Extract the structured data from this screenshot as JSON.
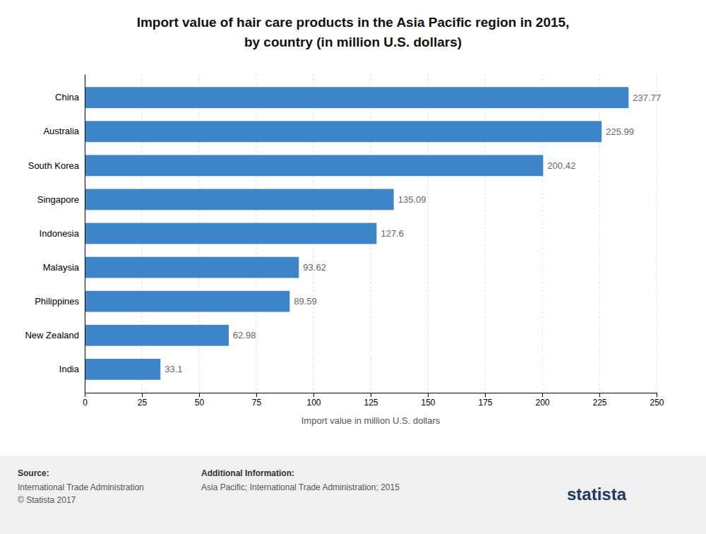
{
  "chart_data": {
    "type": "bar",
    "orientation": "horizontal",
    "title": "Import value of hair care products in the Asia Pacific region in 2015,",
    "subtitle": "by country (in million U.S. dollars)",
    "categories": [
      "India",
      "New Zealand",
      "Philippines",
      "Malaysia",
      "Indonesia",
      "Singapore",
      "South Korea",
      "Australia",
      "China"
    ],
    "values": [
      33.1,
      62.98,
      89.59,
      93.62,
      127.6,
      135.09,
      200.42,
      225.99,
      237.77
    ],
    "color": "#3d85c8",
    "x_label": "Import value in million U.S. dollars",
    "xlim": [
      0,
      250
    ],
    "xticks": [
      0,
      25,
      50,
      75,
      100,
      125,
      150,
      175,
      200,
      225,
      250
    ],
    "grid": true,
    "data_labels": true,
    "annotations": [
      "Source:",
      "International Trade Administration",
      "© Statista 2017",
      "Additional Information:",
      "Asia Pacific; International Trade Administration; 2015",
      "statista"
    ]
  }
}
